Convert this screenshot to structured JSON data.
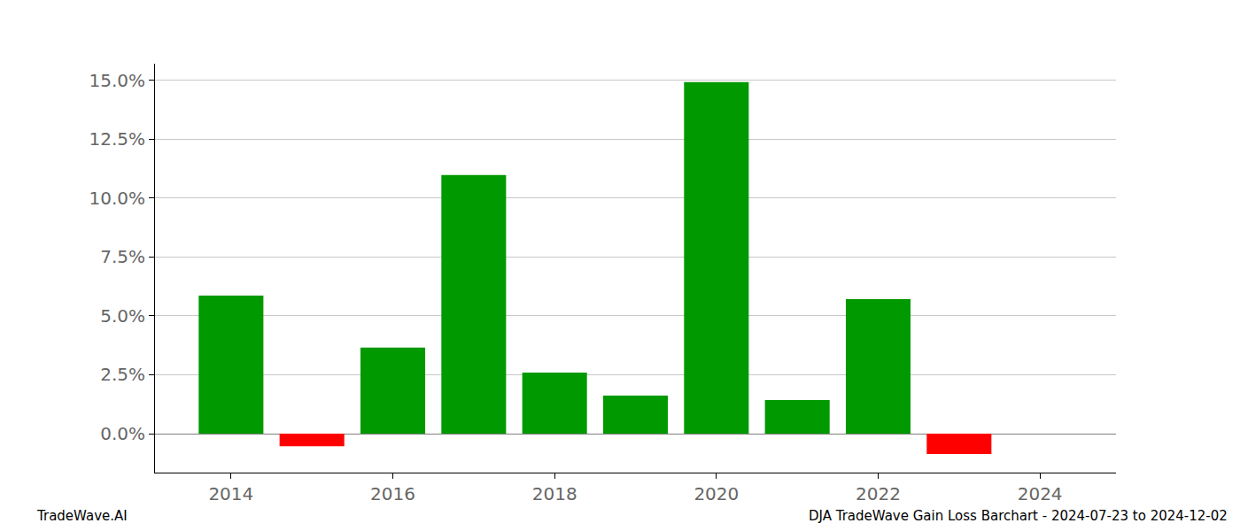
{
  "chart_data": {
    "type": "bar",
    "x": [
      2014,
      2015,
      2016,
      2017,
      2018,
      2019,
      2020,
      2021,
      2022,
      2023,
      2024
    ],
    "values": [
      5.86,
      -0.53,
      3.65,
      10.98,
      2.59,
      1.62,
      14.92,
      1.43,
      5.71,
      -0.86,
      0
    ],
    "colors": [
      "#009900",
      "#ff0000",
      "#009900",
      "#009900",
      "#009900",
      "#009900",
      "#009900",
      "#009900",
      "#009900",
      "#ff0000",
      "#009900"
    ],
    "xlim": [
      2013.06,
      2024.94
    ],
    "xticks": [
      2014,
      2016,
      2018,
      2020,
      2022,
      2024
    ],
    "ylim": [
      -1.65,
      15.7
    ],
    "yticks": [
      {
        "value": 0,
        "label": "0.0%"
      },
      {
        "value": 2.5,
        "label": "2.5%"
      },
      {
        "value": 5,
        "label": "5.0%"
      },
      {
        "value": 7.5,
        "label": "7.5%"
      },
      {
        "value": 10,
        "label": "10.0%"
      },
      {
        "value": 12.5,
        "label": "12.5%"
      },
      {
        "value": 15,
        "label": "15.0%"
      }
    ],
    "grid": true,
    "annotations": [
      "TradeWave.AI",
      "DJA TradeWave Gain Loss Barchart - 2024-07-23 to 2024-12-02"
    ]
  }
}
